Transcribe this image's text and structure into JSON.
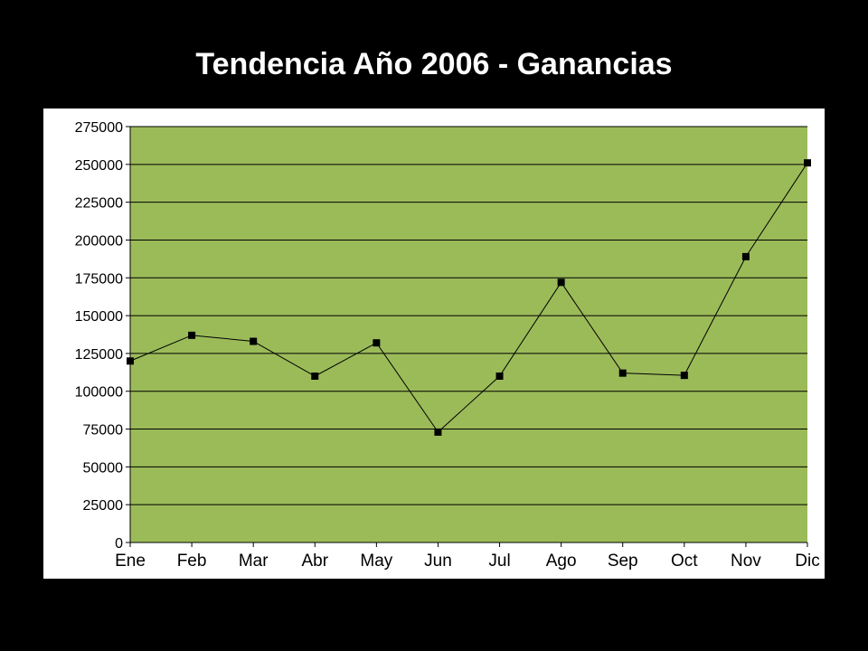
{
  "slide": {
    "title": "Tendencia Año 2006 - Ganancias"
  },
  "chart_data": {
    "type": "line",
    "title": "Tendencia Año 2006 - Ganancias",
    "xlabel": "",
    "ylabel": "",
    "categories": [
      "Ene",
      "Feb",
      "Mar",
      "Abr",
      "May",
      "Jun",
      "Jul",
      "Ago",
      "Sep",
      "Oct",
      "Nov",
      "Dic"
    ],
    "series": [
      {
        "values": [
          120000,
          137000,
          133000,
          110000,
          132000,
          73000,
          110000,
          172000,
          112000,
          110500,
          189000,
          251000
        ]
      }
    ],
    "ylim": [
      0,
      275000
    ],
    "yticks": [
      0,
      25000,
      50000,
      75000,
      100000,
      125000,
      150000,
      175000,
      200000,
      225000,
      250000,
      275000
    ],
    "grid": true,
    "legend": "none",
    "colors": {
      "plot_background": "#9bbb59",
      "panel_background": "#ffffff",
      "line": "#000000",
      "marker": "#000000",
      "gridline": "#000000"
    }
  }
}
